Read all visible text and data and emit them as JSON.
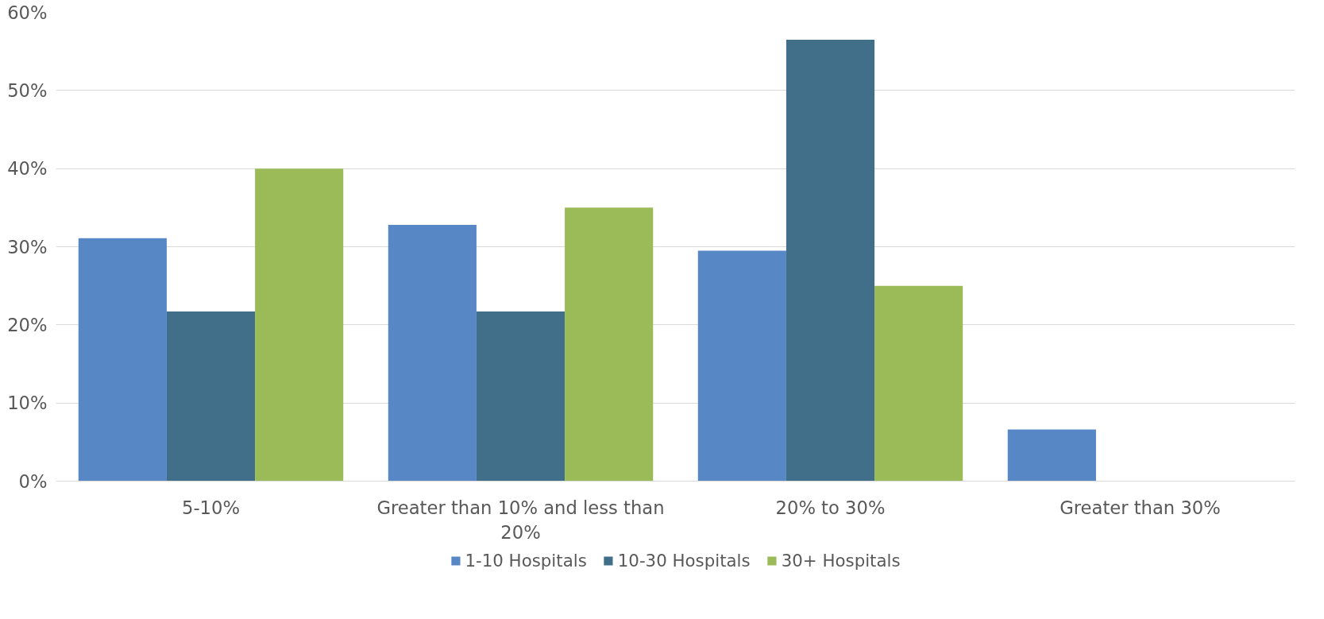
{
  "chart_data": {
    "type": "bar",
    "categories": [
      "5-10%",
      "Greater than 10% and less than 20%",
      "20% to 30%",
      "Greater than 30%"
    ],
    "series": [
      {
        "name": "1-10 Hospitals",
        "color": "#5787c5",
        "values": [
          31.1,
          32.8,
          29.5,
          6.6
        ]
      },
      {
        "name": "10-30 Hospitals",
        "color": "#416e88",
        "values": [
          21.7,
          21.7,
          56.5,
          0
        ]
      },
      {
        "name": "30+ Hospitals",
        "color": "#9bbb59",
        "values": [
          40,
          35,
          25,
          0
        ]
      }
    ],
    "ylim": [
      0,
      60
    ],
    "yticks": [
      {
        "value": 0,
        "label": "0%"
      },
      {
        "value": 10,
        "label": "10%"
      },
      {
        "value": 20,
        "label": "20%"
      },
      {
        "value": 30,
        "label": "30%"
      },
      {
        "value": 40,
        "label": "40%"
      },
      {
        "value": 50,
        "label": "50%"
      },
      {
        "value": 60,
        "label": "60%"
      }
    ],
    "grid": "y",
    "legend": "bottom"
  }
}
